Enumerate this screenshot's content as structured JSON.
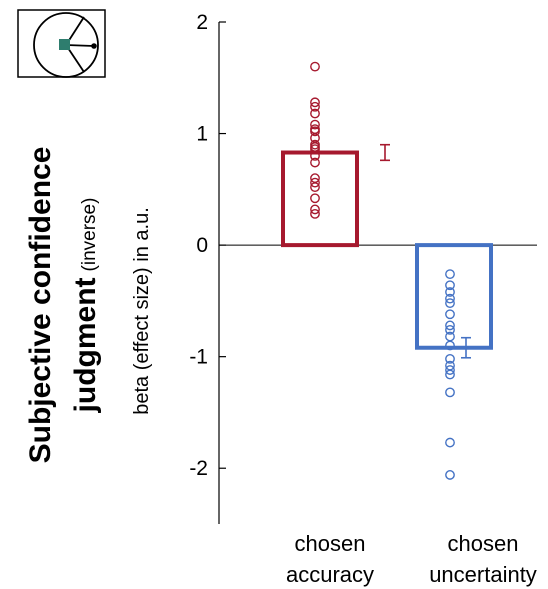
{
  "figure": {
    "title_bold_line1": "Subjective confidence",
    "title_bold_line2": "judgment",
    "title_note": "(inverse)"
  },
  "colors": {
    "accuracy": "#A6192E",
    "uncertainty": "#4472C4",
    "icon_fill": "#2E7D6E",
    "axis": "#000000"
  },
  "icon": {
    "name": "clock-dial-icon"
  },
  "chart_data": {
    "type": "bar",
    "ylabel": "beta (effect size) in a.u.",
    "ylim": [
      -2.5,
      2
    ],
    "yticks": [
      2,
      1,
      0,
      -1,
      -2
    ],
    "ytick_labels": [
      "2",
      "1",
      "0",
      "-1",
      "-2"
    ],
    "categories": [
      {
        "line1": "chosen",
        "line2": "accuracy"
      },
      {
        "line1": "chosen",
        "line2": "uncertainty"
      }
    ],
    "series": [
      {
        "category": "chosen accuracy",
        "mean": 0.83,
        "error": 0.07,
        "color": "#A6192E",
        "points": [
          1.6,
          1.28,
          1.24,
          1.18,
          1.08,
          1.04,
          1.02,
          0.96,
          0.9,
          0.88,
          0.86,
          0.8,
          0.74,
          0.6,
          0.56,
          0.52,
          0.42,
          0.32,
          0.28
        ]
      },
      {
        "category": "chosen uncertainty",
        "mean": -0.92,
        "error": 0.09,
        "color": "#4472C4",
        "points": [
          -0.26,
          -0.36,
          -0.42,
          -0.48,
          -0.52,
          -0.62,
          -0.72,
          -0.76,
          -0.82,
          -0.9,
          -1.02,
          -1.08,
          -1.12,
          -1.16,
          -1.32,
          -1.77,
          -2.06
        ]
      }
    ]
  }
}
